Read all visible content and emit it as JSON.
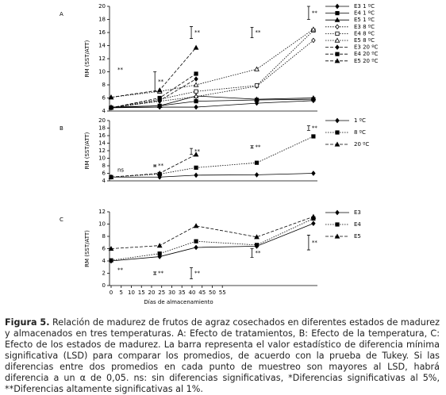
{
  "chart_data": [
    {
      "type": "line",
      "title": "A",
      "y_label": "RM (SST/ATT)",
      "x": [
        0,
        24,
        42,
        72,
        100
      ],
      "xlim": [
        0,
        102
      ],
      "ylim": [
        4,
        20
      ],
      "yticks": [
        4,
        6,
        8,
        10,
        12,
        14,
        16,
        18,
        20
      ],
      "series": [
        {
          "name": "E3 1 ºC",
          "color": "#000000",
          "marker": "diamond",
          "filled": true,
          "dash": "solid",
          "values": [
            4.5,
            4.6,
            4.6,
            5.2,
            5.6
          ]
        },
        {
          "name": "E4 1 ºC",
          "color": "#000000",
          "marker": "square",
          "filled": true,
          "dash": "solid",
          "values": [
            4.5,
            4.8,
            5.5,
            5.7,
            5.8
          ]
        },
        {
          "name": "E5 1 ºC",
          "color": "#000000",
          "marker": "triangle",
          "filled": true,
          "dash": "solid",
          "values": [
            4.6,
            4.8,
            6.3,
            5.8,
            6.0
          ]
        },
        {
          "name": "E3 8 ºC",
          "color": "#000000",
          "marker": "diamond",
          "filled": false,
          "dash": "dotted",
          "values": [
            4.5,
            5.5,
            6.2,
            7.8,
            14.8
          ]
        },
        {
          "name": "E4 8 ºC",
          "color": "#000000",
          "marker": "square",
          "filled": false,
          "dash": "dotted",
          "values": [
            4.5,
            5.8,
            7.0,
            7.9,
            16.3
          ]
        },
        {
          "name": "E5 8 ºC",
          "color": "#000000",
          "marker": "triangle",
          "filled": false,
          "dash": "dotted",
          "values": [
            6.1,
            7.0,
            8.0,
            10.4,
            16.5
          ]
        },
        {
          "name": "E3 20 ºC",
          "color": "#000000",
          "marker": "diamond",
          "filled": true,
          "dash": "dashed",
          "values": [
            4.5,
            5.6,
            8.9,
            null,
            null
          ]
        },
        {
          "name": "E4 20 ºC",
          "color": "#000000",
          "marker": "square",
          "filled": true,
          "dash": "dashed",
          "values": [
            4.5,
            6.0,
            9.7,
            null,
            null
          ]
        },
        {
          "name": "E5 20 ºC",
          "color": "#000000",
          "marker": "triangle",
          "filled": true,
          "dash": "dashed",
          "values": [
            6.1,
            7.2,
            13.7,
            null,
            null
          ]
        }
      ],
      "significance": {
        "x": [
          0,
          24,
          42,
          72,
          100
        ],
        "center": [
          10.3,
          8.5,
          16,
          16,
          19
        ],
        "err": [
          null,
          1.5,
          0.9,
          0.8,
          1
        ],
        "labels": [
          "**",
          "**",
          "**",
          "**",
          "**"
        ]
      }
    },
    {
      "type": "line",
      "title": "B",
      "y_label": "RM (SST/ATT)",
      "x": [
        0,
        24,
        42,
        72,
        100
      ],
      "xlim": [
        0,
        102
      ],
      "ylim": [
        4,
        20
      ],
      "yticks": [
        4,
        6,
        8,
        10,
        12,
        14,
        16,
        18,
        20
      ],
      "series": [
        {
          "name": "1 ºC",
          "color": "#000000",
          "marker": "diamond",
          "filled": true,
          "dash": "solid",
          "values": [
            5,
            5,
            5.5,
            5.6,
            6
          ]
        },
        {
          "name": "8 ºC",
          "color": "#000000",
          "marker": "square",
          "filled": true,
          "dash": "dotted",
          "values": [
            5,
            5.8,
            7.5,
            8.8,
            15.8
          ]
        },
        {
          "name": "20 ºC",
          "color": "#000000",
          "marker": "triangle",
          "filled": true,
          "dash": "dashed",
          "values": [
            5,
            6,
            11,
            null,
            null
          ]
        }
      ],
      "significance": {
        "x": [
          0,
          24,
          42,
          72,
          100
        ],
        "center": [
          6.8,
          8,
          11.8,
          13,
          18
        ],
        "err": [
          null,
          0.2,
          0.8,
          0.3,
          0.6
        ],
        "labels": [
          "ns",
          "**",
          "**",
          "**",
          "**"
        ]
      }
    },
    {
      "type": "line",
      "title": "C",
      "y_label": "RM (SST/ATT)",
      "x_label": "Días de almacenamiento",
      "x": [
        0,
        24,
        42,
        72,
        100
      ],
      "xlim": [
        0,
        102
      ],
      "xticks": [
        0,
        5,
        10,
        15,
        20,
        25,
        30,
        35,
        40,
        45,
        50,
        55
      ],
      "ylim": [
        0,
        12
      ],
      "yticks": [
        0,
        2,
        4,
        6,
        8,
        10,
        12
      ],
      "series": [
        {
          "name": "E3",
          "color": "#000000",
          "marker": "diamond",
          "filled": true,
          "dash": "solid",
          "values": [
            4,
            4.7,
            6.2,
            6.4,
            10.1
          ]
        },
        {
          "name": "E4",
          "color": "#000000",
          "marker": "square",
          "filled": true,
          "dash": "dotted",
          "values": [
            4.1,
            5.2,
            7.2,
            6.6,
            10.9
          ]
        },
        {
          "name": "E5",
          "color": "#000000",
          "marker": "triangle",
          "filled": true,
          "dash": "dashed",
          "values": [
            6,
            6.5,
            9.7,
            7.9,
            11.2
          ]
        }
      ],
      "significance": {
        "x": [
          0,
          24,
          42,
          72,
          100
        ],
        "center": [
          2.5,
          2,
          2,
          5.3,
          7
        ],
        "err": [
          null,
          0.2,
          0.9,
          0.7,
          1.2
        ],
        "labels": [
          "**",
          "**",
          "**",
          "**",
          "**"
        ]
      }
    }
  ],
  "caption": {
    "label": "Figura 5.",
    "text": " Relación de madurez de frutos de agraz cosechados en diferentes estados de madurez y almacenados en tres temperaturas. A: Efecto de tratamientos, B: Efecto de la temperatura, C: Efecto de los estados de madurez. La barra representa el valor estadístico de diferencia mínima significativa (LSD) para comparar los promedios, de acuerdo con la prueba de Tukey. Si las diferencias entre dos promedios en cada punto de muestreo son mayores al LSD, habrá diferencia a un α de 0,05. ns: sin diferencias significativas, *Diferencias significativas al 5%, **Diferencias altamente significativas al 1%."
  }
}
